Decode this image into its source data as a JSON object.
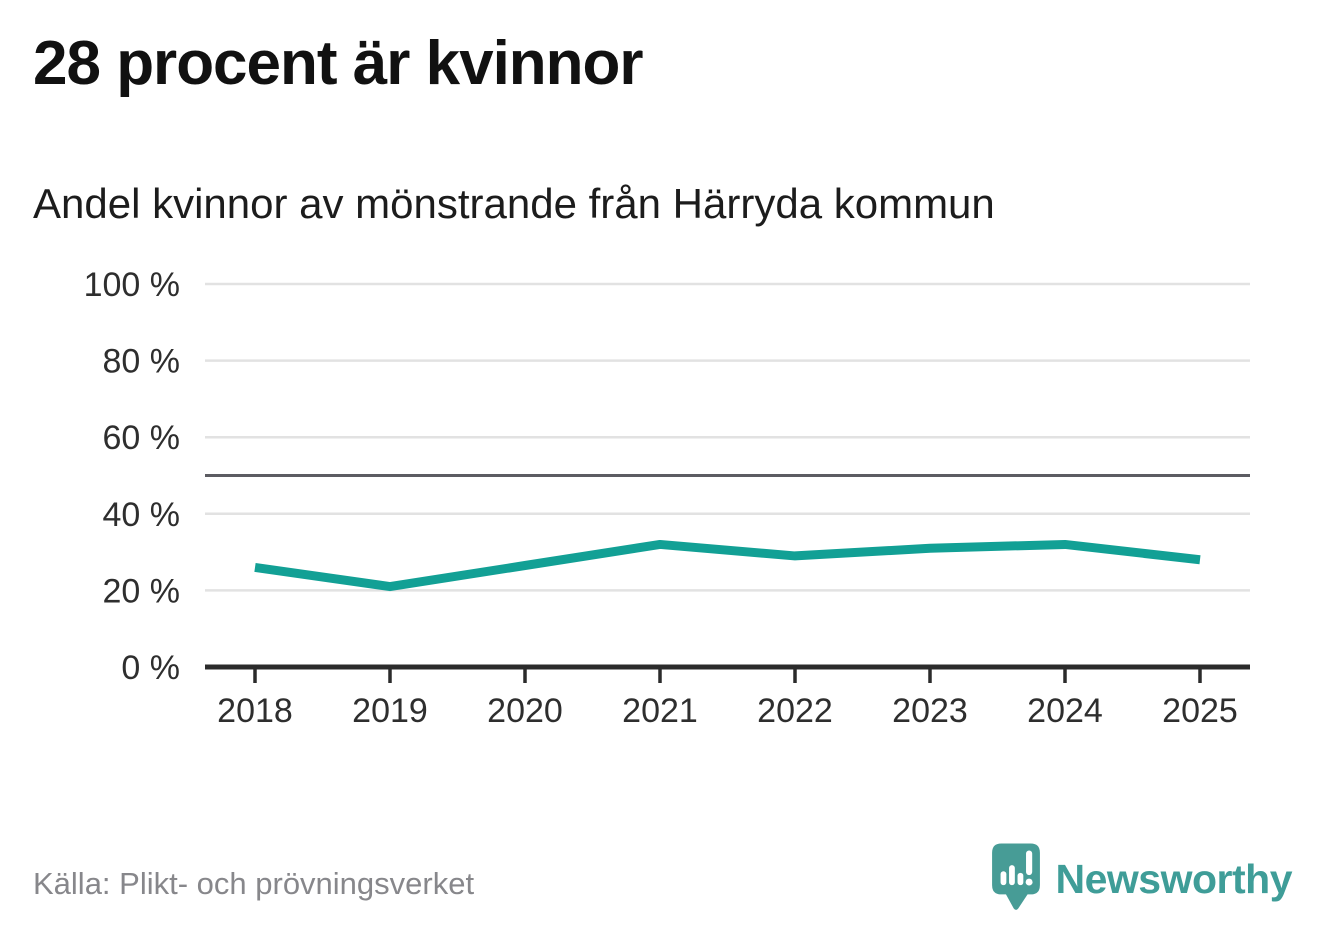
{
  "header": {
    "title": "28 procent är kvinnor",
    "subtitle": "Andel kvinnor av mönstrande från Härryda kommun"
  },
  "chart_data": {
    "type": "line",
    "title": "28 procent är kvinnor",
    "subtitle": "Andel kvinnor av mönstrande från Härryda kommun",
    "x": [
      2018,
      2019,
      2020,
      2021,
      2022,
      2023,
      2024,
      2025
    ],
    "series": [
      {
        "name": "Andel kvinnor av mönstrande",
        "values": [
          26,
          21,
          26.5,
          32,
          29,
          31,
          32,
          28
        ]
      }
    ],
    "ylim": [
      0,
      100
    ],
    "yticks": [
      0,
      20,
      40,
      60,
      80,
      100
    ],
    "ytick_suffix": " %",
    "reference_line": 50,
    "grid": true,
    "legend": "none",
    "colors": {
      "line": "#12a095",
      "grid": "#e2e2e2",
      "reference_line": "#5c5c62",
      "axis": "#2b2b2b",
      "tick_label": "#2e2e2e"
    }
  },
  "footer": {
    "source": "Källa: Plikt- och prövningsverket",
    "brand": "Newsworthy",
    "brand_color": "#3f9d98",
    "logo_color": "#479c96"
  }
}
